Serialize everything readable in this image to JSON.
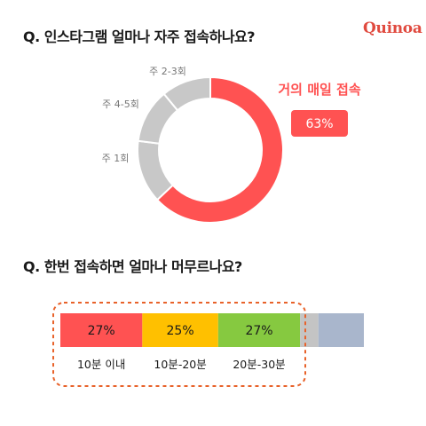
{
  "brand": "Quinoa",
  "colors": {
    "accent": "#ff5252",
    "gray": "#c8c8c8",
    "yellow": "#ffc000",
    "green": "#86c940",
    "light_gray": "#c4c4c4",
    "blue_gray": "#a9b6cc",
    "highlight_border": "#e8622a"
  },
  "chart_data": [
    {
      "type": "pie",
      "title": "Q. 인스타그램 얼마나 자주 접속하나요?",
      "slices": [
        {
          "label": "거의 매일 접속",
          "value": 63,
          "color": "#ff5252",
          "value_label": "63%"
        },
        {
          "label": "주 1회",
          "value": 14,
          "color": "#c8c8c8"
        },
        {
          "label": "주 4-5회",
          "value": 12,
          "color": "#c8c8c8"
        },
        {
          "label": "주 2-3회",
          "value": 11,
          "color": "#c8c8c8"
        }
      ]
    },
    {
      "type": "bar",
      "orientation": "horizontal-stacked",
      "title": "Q. 한번 접속하면 얼마나 머무르나요?",
      "segments": [
        {
          "label": "10분 이내",
          "value": 27,
          "value_label": "27%",
          "color": "#ff5252",
          "text_color": "#ffffff"
        },
        {
          "label": "10분-20분",
          "value": 25,
          "value_label": "25%",
          "color": "#ffc000",
          "text_color": "#1a1a1a"
        },
        {
          "label": "20분-30분",
          "value": 27,
          "value_label": "27%",
          "color": "#86c940",
          "text_color": "#1a1a1a"
        },
        {
          "label": "",
          "value": 6,
          "color": "#c4c4c4"
        },
        {
          "label": "",
          "value": 15,
          "color": "#a9b6cc"
        }
      ]
    }
  ]
}
